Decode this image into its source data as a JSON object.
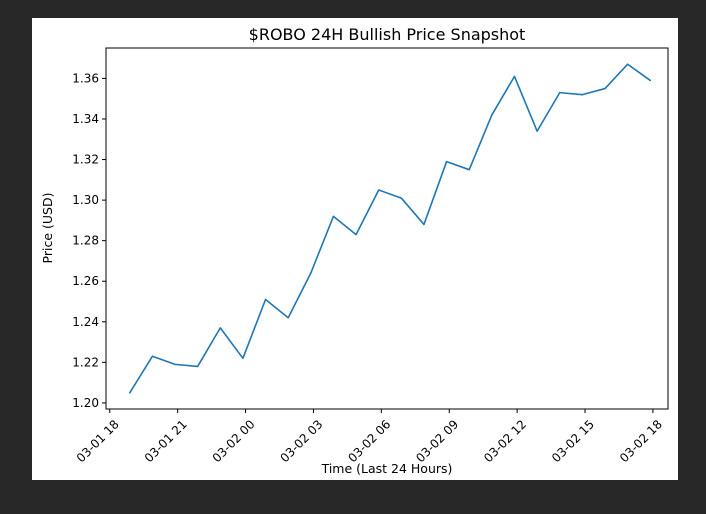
{
  "chart_data": {
    "type": "line",
    "title": "$ROBO 24H Bullish Price Snapshot",
    "xlabel": "Time (Last 24 Hours)",
    "ylabel": "Price (USD)",
    "grid": false,
    "ylim": [
      1.197,
      1.375
    ],
    "xlim": [
      "03-01 17:50",
      "03-02 18:40"
    ],
    "yticks": [
      "1.20",
      "1.22",
      "1.24",
      "1.26",
      "1.28",
      "1.30",
      "1.32",
      "1.34",
      "1.36"
    ],
    "xticks": [
      "03-01 18",
      "03-01 21",
      "03-02 00",
      "03-02 03",
      "03-02 06",
      "03-02 09",
      "03-02 12",
      "03-02 15",
      "03-02 18"
    ],
    "series": [
      {
        "color": "#1f77b4",
        "x": [
          "03-01 18:53",
          "03-01 19:53",
          "03-01 20:53",
          "03-01 21:53",
          "03-01 22:53",
          "03-01 23:53",
          "03-02 00:53",
          "03-02 01:53",
          "03-02 02:53",
          "03-02 03:53",
          "03-02 04:53",
          "03-02 05:53",
          "03-02 06:53",
          "03-02 07:53",
          "03-02 08:53",
          "03-02 09:53",
          "03-02 10:53",
          "03-02 11:53",
          "03-02 12:53",
          "03-02 13:53",
          "03-02 14:53",
          "03-02 15:53",
          "03-02 16:53",
          "03-02 17:53"
        ],
        "values": [
          1.205,
          1.223,
          1.219,
          1.218,
          1.237,
          1.222,
          1.251,
          1.242,
          1.264,
          1.292,
          1.283,
          1.305,
          1.301,
          1.288,
          1.319,
          1.315,
          1.342,
          1.361,
          1.334,
          1.353,
          1.352,
          1.355,
          1.367,
          1.359
        ]
      }
    ]
  }
}
